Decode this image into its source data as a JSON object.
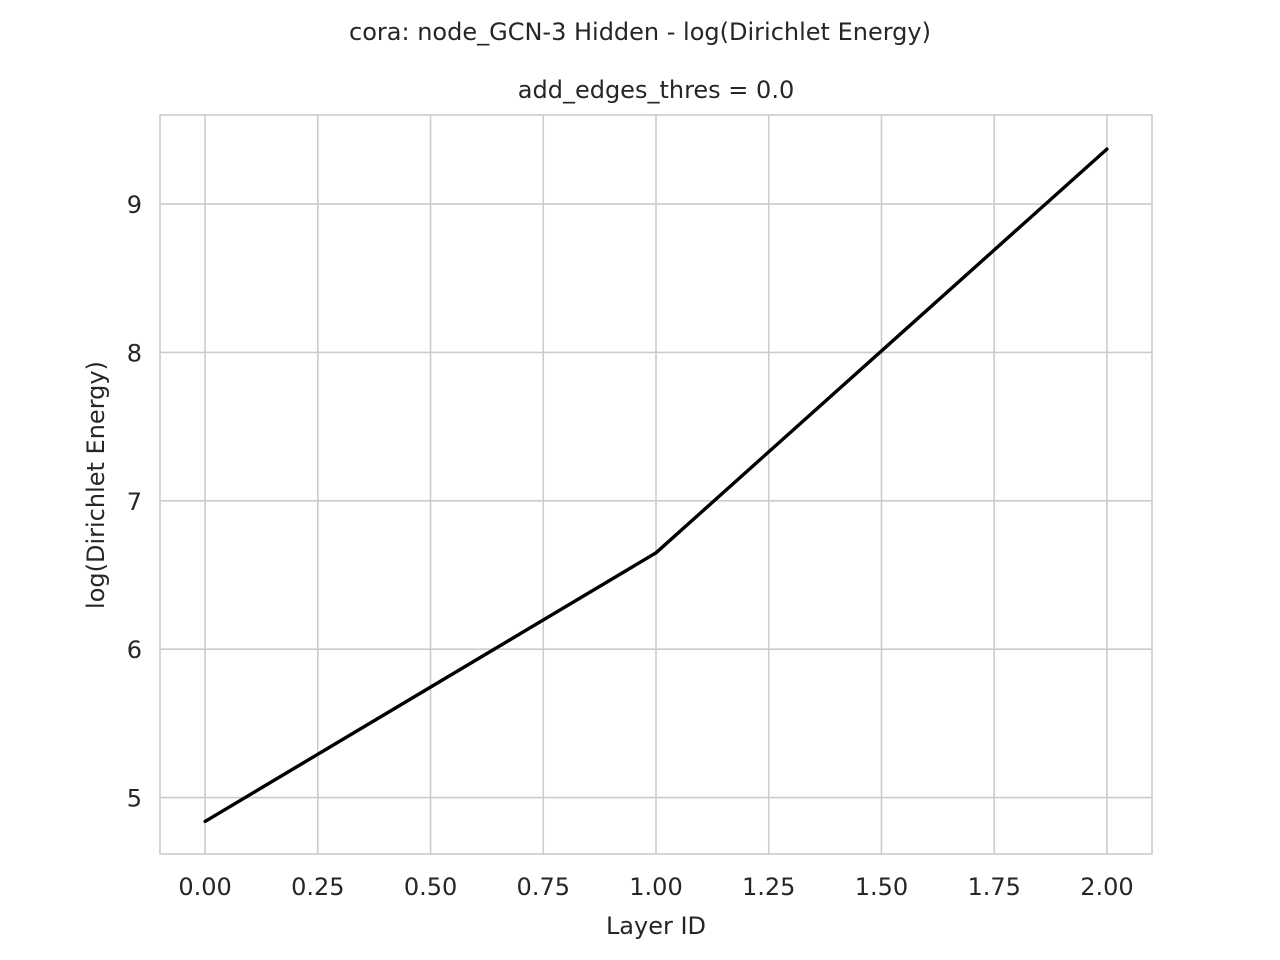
{
  "chart_data": {
    "type": "line",
    "suptitle": "cora: node_GCN-3 Hidden - log(Dirichlet Energy)",
    "title": "add_edges_thres = 0.0",
    "xlabel": "Layer ID",
    "ylabel": "log(Dirichlet Energy)",
    "xlim": [
      -0.1,
      2.1
    ],
    "ylim": [
      4.62,
      9.6
    ],
    "xticks": [
      0,
      0.25,
      0.5,
      0.75,
      1,
      1.25,
      1.5,
      1.75,
      2
    ],
    "xtick_labels": [
      "0.00",
      "0.25",
      "0.50",
      "0.75",
      "1.00",
      "1.25",
      "1.50",
      "1.75",
      "2.00"
    ],
    "yticks": [
      5,
      6,
      7,
      8,
      9
    ],
    "ytick_labels": [
      "5",
      "6",
      "7",
      "8",
      "9"
    ],
    "grid": true,
    "series": [
      {
        "x": [
          0,
          1,
          2
        ],
        "y": [
          4.84,
          6.65,
          9.37
        ],
        "color": "#000000"
      }
    ]
  }
}
